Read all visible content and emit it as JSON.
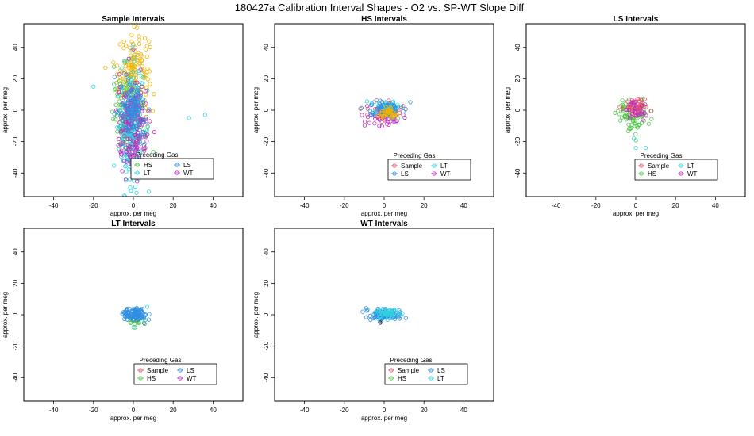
{
  "figure_title": "180427a   Calibration Interval Shapes - O2 vs. SP-WT Slope Diff",
  "colors": {
    "Sample": "#e5566b",
    "HS": "#52c74a",
    "LS": "#2f8fe0",
    "LT": "#2fd6e0",
    "WT": "#c02fc0",
    "Sample_dense": "#f0b400",
    "outlier": "#000000"
  },
  "chart_data": [
    {
      "type": "scatter",
      "title": "Sample Intervals",
      "xlabel": "approx. per meg",
      "ylabel": "approx. per meg",
      "xlim": [
        -55,
        55
      ],
      "ylim": [
        -55,
        55
      ],
      "xticks": [
        -40,
        -20,
        0,
        20,
        40
      ],
      "yticks": [
        -40,
        -20,
        0,
        20,
        40
      ],
      "legend": {
        "title": "Preceding Gas",
        "position": "bottom-right",
        "entries": [
          "HS",
          "LS",
          "LT",
          "WT"
        ]
      },
      "series": [
        {
          "name": "Sample",
          "color_key": "Sample_dense",
          "n": 180,
          "cx": 0,
          "cy": 22,
          "sx": 4,
          "sy": 14
        },
        {
          "name": "HS",
          "n": 160,
          "cx": -2,
          "cy": -5,
          "sx": 4,
          "sy": 12
        },
        {
          "name": "LT",
          "n": 260,
          "cx": -1,
          "cy": -10,
          "sx": 3,
          "sy": 20
        },
        {
          "name": "WT",
          "n": 200,
          "cx": 0,
          "cy": -12,
          "sx": 4,
          "sy": 16
        },
        {
          "name": "LS",
          "n": 120,
          "cx": 0,
          "cy": 0,
          "sx": 3,
          "sy": 8
        }
      ],
      "extra_points": [
        {
          "x": 36,
          "y": -3
        },
        {
          "x": 28,
          "y": -5
        },
        {
          "x": -20,
          "y": 15
        }
      ]
    },
    {
      "type": "scatter",
      "title": "HS Intervals",
      "xlabel": "approx. per meg",
      "ylabel": "approx. per meg",
      "xlim": [
        -55,
        55
      ],
      "ylim": [
        -55,
        55
      ],
      "xticks": [
        -40,
        -20,
        0,
        20,
        40
      ],
      "yticks": [
        -40,
        -20,
        0,
        20,
        40
      ],
      "legend": {
        "title": "Preceding Gas",
        "position": "bottom-right",
        "entries": [
          "Sample",
          "LT",
          "LS",
          "WT"
        ]
      },
      "series": [
        {
          "name": "WT",
          "n": 60,
          "cx": 1,
          "cy": -4,
          "sx": 5,
          "sy": 3
        },
        {
          "name": "Sample",
          "n": 40,
          "cx": 0,
          "cy": 0,
          "sx": 5,
          "sy": 3
        },
        {
          "name": "LT",
          "n": 50,
          "cx": 2,
          "cy": 2,
          "sx": 4,
          "sy": 2
        },
        {
          "name": "LS",
          "n": 60,
          "cx": 1,
          "cy": 1,
          "sx": 4,
          "sy": 2.5
        },
        {
          "name": "Sample_dense",
          "color_key": "Sample_dense",
          "n": 40,
          "cx": 1,
          "cy": -2,
          "sx": 3,
          "sy": 2
        }
      ]
    },
    {
      "type": "scatter",
      "title": "LS Intervals",
      "xlabel": "approx. per meg",
      "ylabel": "approx. per meg",
      "xlim": [
        -55,
        55
      ],
      "ylim": [
        -55,
        55
      ],
      "xticks": [
        -40,
        -20,
        0,
        20,
        40
      ],
      "yticks": [
        -40,
        -20,
        0,
        20,
        40
      ],
      "legend": {
        "title": "Preceding Gas",
        "position": "bottom-right",
        "entries": [
          "Sample",
          "LT",
          "HS",
          "WT"
        ]
      },
      "series": [
        {
          "name": "HS",
          "n": 90,
          "cx": -1,
          "cy": -3,
          "sx": 4,
          "sy": 5
        },
        {
          "name": "Sample",
          "n": 60,
          "cx": 0,
          "cy": 2,
          "sx": 3,
          "sy": 2.5
        },
        {
          "name": "WT",
          "n": 30,
          "cx": 1,
          "cy": 0,
          "sx": 3,
          "sy": 3
        }
      ],
      "extra_points": [
        {
          "x": 0,
          "y": -24
        },
        {
          "x": 5,
          "y": -24
        },
        {
          "x": -1,
          "y": -18
        }
      ]
    },
    {
      "type": "scatter",
      "title": "LT Intervals",
      "xlabel": "approx. per meg",
      "ylabel": "approx. per meg",
      "xlim": [
        -55,
        55
      ],
      "ylim": [
        -55,
        55
      ],
      "xticks": [
        -40,
        -20,
        0,
        20,
        40
      ],
      "yticks": [
        -40,
        -20,
        0,
        20,
        40
      ],
      "legend": {
        "title": "Preceding Gas",
        "position": "bottom-right",
        "entries": [
          "Sample",
          "LS",
          "HS",
          "WT"
        ]
      },
      "series": [
        {
          "name": "HS",
          "n": 30,
          "cx": 1,
          "cy": -3,
          "sx": 2,
          "sy": 2
        },
        {
          "name": "LS",
          "n": 110,
          "cx": 1,
          "cy": 0,
          "sx": 3,
          "sy": 2.2
        }
      ],
      "extra_points": [
        {
          "x": 7,
          "y": 5
        },
        {
          "x": 0,
          "y": -8
        }
      ]
    },
    {
      "type": "scatter",
      "title": "WT Intervals",
      "xlabel": "approx. per meg",
      "ylabel": "approx. per meg",
      "xlim": [
        -55,
        55
      ],
      "ylim": [
        -55,
        55
      ],
      "xticks": [
        -40,
        -20,
        0,
        20,
        40
      ],
      "yticks": [
        -40,
        -20,
        0,
        20,
        40
      ],
      "legend": {
        "title": "Preceding Gas",
        "position": "bottom-right",
        "entries": [
          "Sample",
          "LS",
          "HS",
          "LT"
        ]
      },
      "series": [
        {
          "name": "LS",
          "n": 110,
          "cx": 0,
          "cy": 0,
          "sx": 4,
          "sy": 1.8
        },
        {
          "name": "LT",
          "n": 40,
          "cx": 1,
          "cy": 1,
          "sx": 3,
          "sy": 1.5
        }
      ],
      "extra_points": [
        {
          "x": -2,
          "y": -5,
          "color_key": "outlier"
        }
      ]
    }
  ]
}
